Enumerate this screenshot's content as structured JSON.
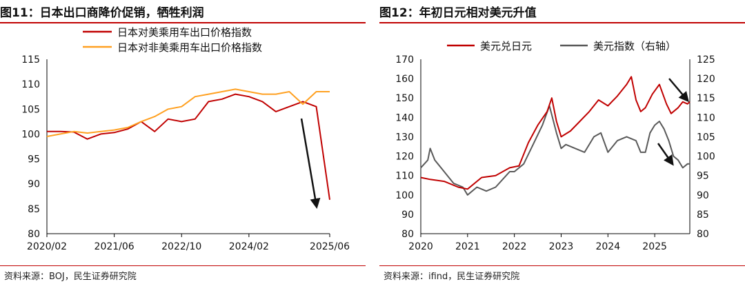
{
  "left": {
    "title": "图11：日本出口商降价促销，牺牲利润",
    "source": "资料来源：BOJ，民生证券研究院",
    "chart_data": {
      "type": "line",
      "x": [
        "2020/02",
        "2020/05",
        "2020/08",
        "2020/11",
        "2021/02",
        "2021/06",
        "2021/09",
        "2021/12",
        "2022/03",
        "2022/06",
        "2022/10",
        "2023/01",
        "2023/04",
        "2023/07",
        "2023/10",
        "2024/02",
        "2024/05",
        "2024/08",
        "2024/11",
        "2025/02",
        "2025/04",
        "2025/06"
      ],
      "xticks": [
        "2020/02",
        "2021/06",
        "2022/10",
        "2024/02",
        "2025/06"
      ],
      "ylim": [
        80,
        115
      ],
      "yticks": [
        80,
        85,
        90,
        95,
        100,
        105,
        110,
        115
      ],
      "series": [
        {
          "name": "日本对美乘用车出口价格指数",
          "color": "#c00000",
          "values": [
            100.5,
            100.5,
            100.4,
            99.0,
            100.0,
            100.3,
            101.0,
            102.5,
            100.5,
            103.0,
            102.5,
            103.0,
            106.5,
            107.0,
            108.0,
            107.5,
            106.5,
            104.5,
            105.5,
            106.5,
            105.5,
            86.8
          ]
        },
        {
          "name": "日本对非美乘用车出口价格指数",
          "color": "#ffa020",
          "values": [
            99.5,
            100.0,
            100.5,
            100.2,
            100.5,
            100.8,
            101.3,
            102.5,
            103.5,
            105.0,
            105.5,
            107.5,
            108.0,
            108.5,
            109.0,
            108.5,
            108.0,
            108.0,
            108.5,
            106.0,
            108.5,
            108.5
          ]
        }
      ],
      "annotation": "arrow"
    }
  },
  "right": {
    "title": "图12：年初日元相对美元升值",
    "source": "资料来源：ifind，民生证券研究院",
    "chart_data": {
      "type": "line",
      "xticks": [
        "2020",
        "2021",
        "2022",
        "2023",
        "2024",
        "2025"
      ],
      "x_range": [
        2020.0,
        2025.75
      ],
      "ylim_left": [
        80,
        170
      ],
      "yticks_left": [
        80,
        90,
        100,
        110,
        120,
        130,
        140,
        150,
        160,
        170
      ],
      "ylim_right": [
        80,
        125
      ],
      "yticks_right": [
        80,
        85,
        90,
        95,
        100,
        105,
        110,
        115,
        120,
        125
      ],
      "series": [
        {
          "name": "美元兑日元",
          "color": "#c00000",
          "axis": "left",
          "x": [
            2020.0,
            2020.2,
            2020.5,
            2020.8,
            2021.0,
            2021.3,
            2021.6,
            2021.9,
            2022.1,
            2022.3,
            2022.5,
            2022.7,
            2022.8,
            2022.9,
            2023.0,
            2023.2,
            2023.4,
            2023.6,
            2023.8,
            2024.0,
            2024.2,
            2024.4,
            2024.5,
            2024.6,
            2024.7,
            2024.8,
            2024.95,
            2025.1,
            2025.25,
            2025.35,
            2025.5,
            2025.6,
            2025.7,
            2025.75
          ],
          "values": [
            109,
            108,
            107,
            104,
            103,
            109,
            110,
            114,
            115,
            127,
            136,
            143,
            150,
            138,
            130,
            133,
            138,
            143,
            149,
            146,
            151,
            157,
            161,
            149,
            143,
            145,
            152,
            157,
            147,
            142,
            145,
            148,
            147,
            148
          ]
        },
        {
          "name": "美元指数（右轴）",
          "color": "#595959",
          "axis": "right",
          "x": [
            2020.0,
            2020.15,
            2020.2,
            2020.3,
            2020.5,
            2020.7,
            2020.9,
            2021.0,
            2021.2,
            2021.4,
            2021.6,
            2021.9,
            2022.0,
            2022.2,
            2022.4,
            2022.6,
            2022.75,
            2022.9,
            2023.0,
            2023.1,
            2023.3,
            2023.5,
            2023.7,
            2023.85,
            2024.0,
            2024.2,
            2024.4,
            2024.6,
            2024.7,
            2024.8,
            2024.9,
            2025.0,
            2025.1,
            2025.2,
            2025.3,
            2025.4,
            2025.5,
            2025.6,
            2025.7,
            2025.75
          ],
          "values": [
            97,
            99,
            102,
            99,
            96,
            93,
            92,
            90,
            92,
            91,
            92,
            96,
            96,
            98,
            103,
            108,
            113,
            106,
            102,
            103,
            102,
            101,
            105,
            106,
            101,
            104,
            105,
            104,
            101,
            101,
            106,
            108,
            109,
            107,
            104,
            100,
            99,
            97,
            98,
            98
          ]
        }
      ],
      "annotation": "arrows"
    }
  }
}
